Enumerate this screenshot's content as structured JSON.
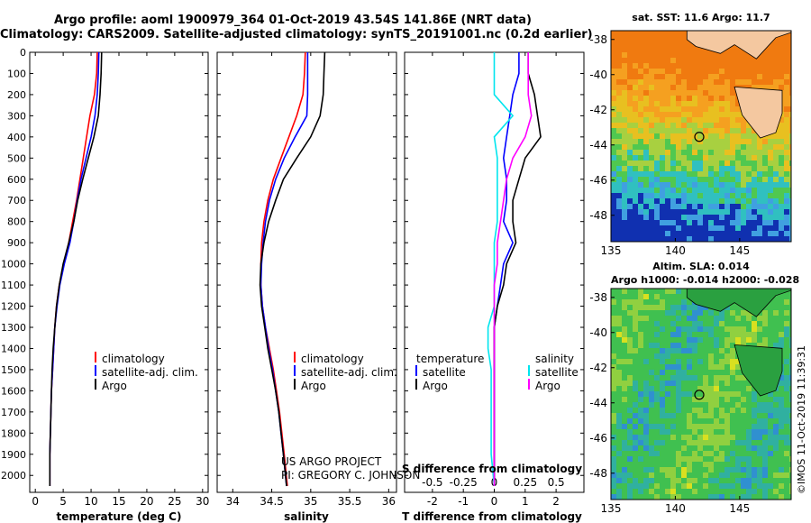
{
  "header": {
    "title_line1": "Argo profile: aoml 1900979_364 01-Oct-2019 43.54S 141.86E (NRT data)",
    "title_line2": "Climatology: CARS2009. Satellite-adjusted climatology: synTS_20191001.nc (0.2d earlier)"
  },
  "credit": {
    "line1": "US ARGO PROJECT",
    "line2": "PI: GREGORY C. JOHNSON"
  },
  "stamp": "©IMOS 11-Oct-2019 11:39:31",
  "colors": {
    "climatology": "#ff0000",
    "satellite": "#0000ff",
    "argo": "#000000",
    "sal_satellite": "#00e5ee",
    "sal_argo": "#ff00ff"
  },
  "legends": {
    "temperature": [
      "climatology",
      "satellite-adj. clim.",
      "Argo"
    ],
    "salinity": [
      "climatology",
      "satellite-adj. clim.",
      "Argo"
    ],
    "diff_left": [
      "temperature",
      "satellite",
      "Argo"
    ],
    "diff_right": [
      "salinity",
      "satellite",
      "Argo"
    ]
  },
  "chart_data": [
    {
      "type": "line",
      "xlabel": "temperature (deg C)",
      "ylabel": "",
      "xlim": [
        -1,
        31
      ],
      "ylim": [
        2080,
        0
      ],
      "xticks": [
        0,
        5,
        10,
        15,
        20,
        25,
        30
      ],
      "yticks": [
        0,
        100,
        200,
        300,
        400,
        500,
        600,
        700,
        800,
        900,
        1000,
        1100,
        1200,
        1300,
        1400,
        1500,
        1600,
        1700,
        1800,
        1900,
        2000
      ],
      "ytick_labels": [
        "0",
        "100",
        "200",
        "300",
        "400",
        "500",
        "600",
        "700",
        "800",
        "900",
        "1000",
        "1100",
        "1200",
        "1300",
        "1400",
        "1500",
        "1600",
        "1700",
        "1800",
        "1900",
        "2000"
      ],
      "series": [
        {
          "name": "climatology",
          "points": [
            [
              11.1,
              0
            ],
            [
              11.0,
              100
            ],
            [
              10.6,
              200
            ],
            [
              9.8,
              300
            ],
            [
              9.2,
              400
            ],
            [
              8.6,
              500
            ],
            [
              8.0,
              600
            ],
            [
              7.4,
              700
            ],
            [
              6.7,
              800
            ],
            [
              6.0,
              900
            ],
            [
              5.1,
              1000
            ],
            [
              4.3,
              1100
            ],
            [
              3.8,
              1200
            ],
            [
              3.5,
              1300
            ],
            [
              3.3,
              1400
            ],
            [
              3.1,
              1500
            ],
            [
              2.9,
              1600
            ],
            [
              2.8,
              1700
            ],
            [
              2.7,
              1800
            ],
            [
              2.6,
              1900
            ],
            [
              2.6,
              2050
            ]
          ]
        },
        {
          "name": "satellite-adj. clim.",
          "points": [
            [
              11.4,
              0
            ],
            [
              11.3,
              100
            ],
            [
              11.1,
              200
            ],
            [
              10.7,
              300
            ],
            [
              10.0,
              400
            ],
            [
              9.1,
              500
            ],
            [
              8.2,
              600
            ],
            [
              7.5,
              700
            ],
            [
              6.9,
              800
            ],
            [
              6.2,
              900
            ],
            [
              5.2,
              1000
            ],
            [
              4.4,
              1100
            ],
            [
              3.9,
              1200
            ],
            [
              3.5,
              1300
            ],
            [
              3.3,
              1400
            ],
            [
              3.1,
              1500
            ],
            [
              2.9,
              1600
            ],
            [
              2.8,
              1700
            ],
            [
              2.7,
              1800
            ],
            [
              2.6,
              1900
            ],
            [
              2.6,
              2050
            ]
          ]
        },
        {
          "name": "Argo",
          "points": [
            [
              11.9,
              0
            ],
            [
              11.8,
              100
            ],
            [
              11.6,
              200
            ],
            [
              11.3,
              300
            ],
            [
              10.5,
              400
            ],
            [
              9.5,
              500
            ],
            [
              8.5,
              600
            ],
            [
              7.6,
              700
            ],
            [
              6.9,
              800
            ],
            [
              6.0,
              900
            ],
            [
              5.0,
              1000
            ],
            [
              4.3,
              1100
            ],
            [
              3.8,
              1200
            ],
            [
              3.5,
              1300
            ],
            [
              3.2,
              1400
            ],
            [
              3.0,
              1500
            ],
            [
              2.9,
              1600
            ],
            [
              2.8,
              1700
            ],
            [
              2.7,
              1800
            ],
            [
              2.6,
              1900
            ],
            [
              2.6,
              2050
            ]
          ]
        }
      ]
    },
    {
      "type": "line",
      "xlabel": "salinity",
      "ylabel": "",
      "xlim": [
        33.8,
        36.1
      ],
      "ylim": [
        2080,
        0
      ],
      "xticks": [
        34,
        34.5,
        35,
        35.5,
        36
      ],
      "xtick_labels": [
        "34",
        "34.5",
        "35",
        "35.5",
        "36"
      ],
      "series": [
        {
          "name": "climatology",
          "points": [
            [
              34.93,
              0
            ],
            [
              34.92,
              100
            ],
            [
              34.9,
              200
            ],
            [
              34.82,
              300
            ],
            [
              34.72,
              400
            ],
            [
              34.62,
              500
            ],
            [
              34.52,
              600
            ],
            [
              34.45,
              700
            ],
            [
              34.4,
              800
            ],
            [
              34.37,
              900
            ],
            [
              34.36,
              1000
            ],
            [
              34.36,
              1100
            ],
            [
              34.38,
              1200
            ],
            [
              34.42,
              1300
            ],
            [
              34.47,
              1400
            ],
            [
              34.52,
              1500
            ],
            [
              34.56,
              1600
            ],
            [
              34.6,
              1700
            ],
            [
              34.63,
              1800
            ],
            [
              34.66,
              1900
            ],
            [
              34.7,
              2050
            ]
          ]
        },
        {
          "name": "satellite-adj. clim.",
          "points": [
            [
              34.96,
              0
            ],
            [
              34.96,
              100
            ],
            [
              34.96,
              200
            ],
            [
              34.95,
              300
            ],
            [
              34.8,
              400
            ],
            [
              34.66,
              500
            ],
            [
              34.55,
              600
            ],
            [
              34.47,
              700
            ],
            [
              34.42,
              800
            ],
            [
              34.39,
              900
            ],
            [
              34.37,
              1000
            ],
            [
              34.36,
              1100
            ],
            [
              34.38,
              1200
            ],
            [
              34.42,
              1300
            ],
            [
              34.46,
              1400
            ],
            [
              34.51,
              1500
            ],
            [
              34.55,
              1600
            ],
            [
              34.59,
              1700
            ],
            [
              34.62,
              1800
            ],
            [
              34.65,
              1900
            ],
            [
              34.69,
              2050
            ]
          ]
        },
        {
          "name": "Argo",
          "points": [
            [
              35.18,
              0
            ],
            [
              35.17,
              100
            ],
            [
              35.16,
              200
            ],
            [
              35.12,
              300
            ],
            [
              35.0,
              400
            ],
            [
              34.82,
              500
            ],
            [
              34.65,
              600
            ],
            [
              34.55,
              700
            ],
            [
              34.46,
              800
            ],
            [
              34.4,
              900
            ],
            [
              34.36,
              1000
            ],
            [
              34.35,
              1100
            ],
            [
              34.37,
              1200
            ],
            [
              34.41,
              1300
            ],
            [
              34.45,
              1400
            ],
            [
              34.5,
              1500
            ],
            [
              34.55,
              1600
            ],
            [
              34.59,
              1700
            ],
            [
              34.62,
              1800
            ],
            [
              34.65,
              1900
            ],
            [
              34.69,
              2050
            ]
          ]
        }
      ]
    },
    {
      "type": "line",
      "xlabel": "T difference from climatology",
      "x2label": "S difference from climatology",
      "xlim": [
        -2.9,
        2.9
      ],
      "ylim": [
        2080,
        0
      ],
      "xticks": [
        -2,
        -1,
        0,
        1,
        2
      ],
      "x2ticks": [
        -0.5,
        -0.25,
        0,
        0.25,
        0.5
      ],
      "x2tick_labels": [
        "-0.5",
        "-0.25",
        "0",
        "0.25",
        "0.5"
      ],
      "series": [
        {
          "name": "temperature satellite",
          "points": [
            [
              0.8,
              0
            ],
            [
              0.8,
              100
            ],
            [
              0.6,
              200
            ],
            [
              0.5,
              300
            ],
            [
              0.4,
              400
            ],
            [
              0.3,
              500
            ],
            [
              0.4,
              600
            ],
            [
              0.4,
              700
            ],
            [
              0.3,
              800
            ],
            [
              0.6,
              900
            ],
            [
              0.3,
              1000
            ],
            [
              0.2,
              1100
            ],
            [
              0.1,
              1200
            ],
            [
              0.0,
              1300
            ],
            [
              0.0,
              1400
            ],
            [
              0.0,
              1500
            ],
            [
              0.0,
              1600
            ],
            [
              0.0,
              1700
            ],
            [
              0.0,
              1800
            ],
            [
              0.0,
              1900
            ],
            [
              0.0,
              2050
            ]
          ]
        },
        {
          "name": "temperature Argo",
          "points": [
            [
              1.1,
              0
            ],
            [
              1.1,
              100
            ],
            [
              1.3,
              200
            ],
            [
              1.4,
              300
            ],
            [
              1.5,
              400
            ],
            [
              1.0,
              500
            ],
            [
              0.8,
              600
            ],
            [
              0.6,
              700
            ],
            [
              0.6,
              800
            ],
            [
              0.7,
              900
            ],
            [
              0.4,
              1000
            ],
            [
              0.3,
              1100
            ],
            [
              0.1,
              1200
            ],
            [
              0.0,
              1300
            ],
            [
              0.0,
              1400
            ],
            [
              0.0,
              1500
            ],
            [
              0.0,
              1600
            ],
            [
              0.0,
              1700
            ],
            [
              0.0,
              1800
            ],
            [
              0.0,
              1900
            ],
            [
              0.0,
              2050
            ]
          ]
        },
        {
          "name": "salinity satellite",
          "points": [
            [
              0.0,
              0
            ],
            [
              0.0,
              100
            ],
            [
              0.0,
              200
            ],
            [
              0.6,
              300
            ],
            [
              0.0,
              400
            ],
            [
              0.1,
              500
            ],
            [
              0.1,
              600
            ],
            [
              0.1,
              700
            ],
            [
              0.1,
              800
            ],
            [
              0.0,
              900
            ],
            [
              0.0,
              1000
            ],
            [
              0.0,
              1100
            ],
            [
              0.0,
              1200
            ],
            [
              -0.2,
              1300
            ],
            [
              -0.2,
              1400
            ],
            [
              -0.1,
              1500
            ],
            [
              -0.1,
              1600
            ],
            [
              -0.1,
              1700
            ],
            [
              -0.1,
              1800
            ],
            [
              -0.1,
              1900
            ],
            [
              0.0,
              2050
            ]
          ]
        },
        {
          "name": "salinity Argo",
          "points": [
            [
              1.1,
              0
            ],
            [
              1.1,
              100
            ],
            [
              1.1,
              200
            ],
            [
              1.2,
              300
            ],
            [
              1.0,
              400
            ],
            [
              0.6,
              500
            ],
            [
              0.4,
              600
            ],
            [
              0.3,
              700
            ],
            [
              0.2,
              800
            ],
            [
              0.1,
              900
            ],
            [
              0.1,
              1000
            ],
            [
              0.0,
              1100
            ],
            [
              0.0,
              1200
            ],
            [
              0.0,
              1300
            ],
            [
              0.0,
              1400
            ],
            [
              0.0,
              1500
            ],
            [
              0.0,
              1600
            ],
            [
              0.0,
              1700
            ],
            [
              0.0,
              1800
            ],
            [
              0.0,
              1900
            ],
            [
              0.0,
              2050
            ]
          ]
        }
      ]
    },
    {
      "type": "heatmap",
      "title": "sat. SST: 11.6 Argo: 11.7",
      "xlim": [
        135,
        149
      ],
      "ylim": [
        -49.5,
        -37.5
      ],
      "xticks": [
        135,
        140,
        145
      ],
      "yticks": [
        -38,
        -40,
        -42,
        -44,
        -46,
        -48
      ],
      "ytick_labels": [
        "-38",
        "-40",
        "-42",
        "-44",
        "-46",
        "-48"
      ],
      "profile_location": [
        141.86,
        -43.54
      ]
    },
    {
      "type": "heatmap",
      "title": "Altim. SLA: 0.014",
      "subtitle": "Argo h1000: -0.014 h2000: -0.028",
      "xlim": [
        135,
        149
      ],
      "ylim": [
        -49.5,
        -37.5
      ],
      "xticks": [
        135,
        140,
        145
      ],
      "yticks": [
        -38,
        -40,
        -42,
        -44,
        -46,
        -48
      ],
      "ytick_labels": [
        "-38",
        "-40",
        "-42",
        "-44",
        "-46",
        "-48"
      ],
      "profile_location": [
        141.86,
        -43.54
      ]
    }
  ]
}
